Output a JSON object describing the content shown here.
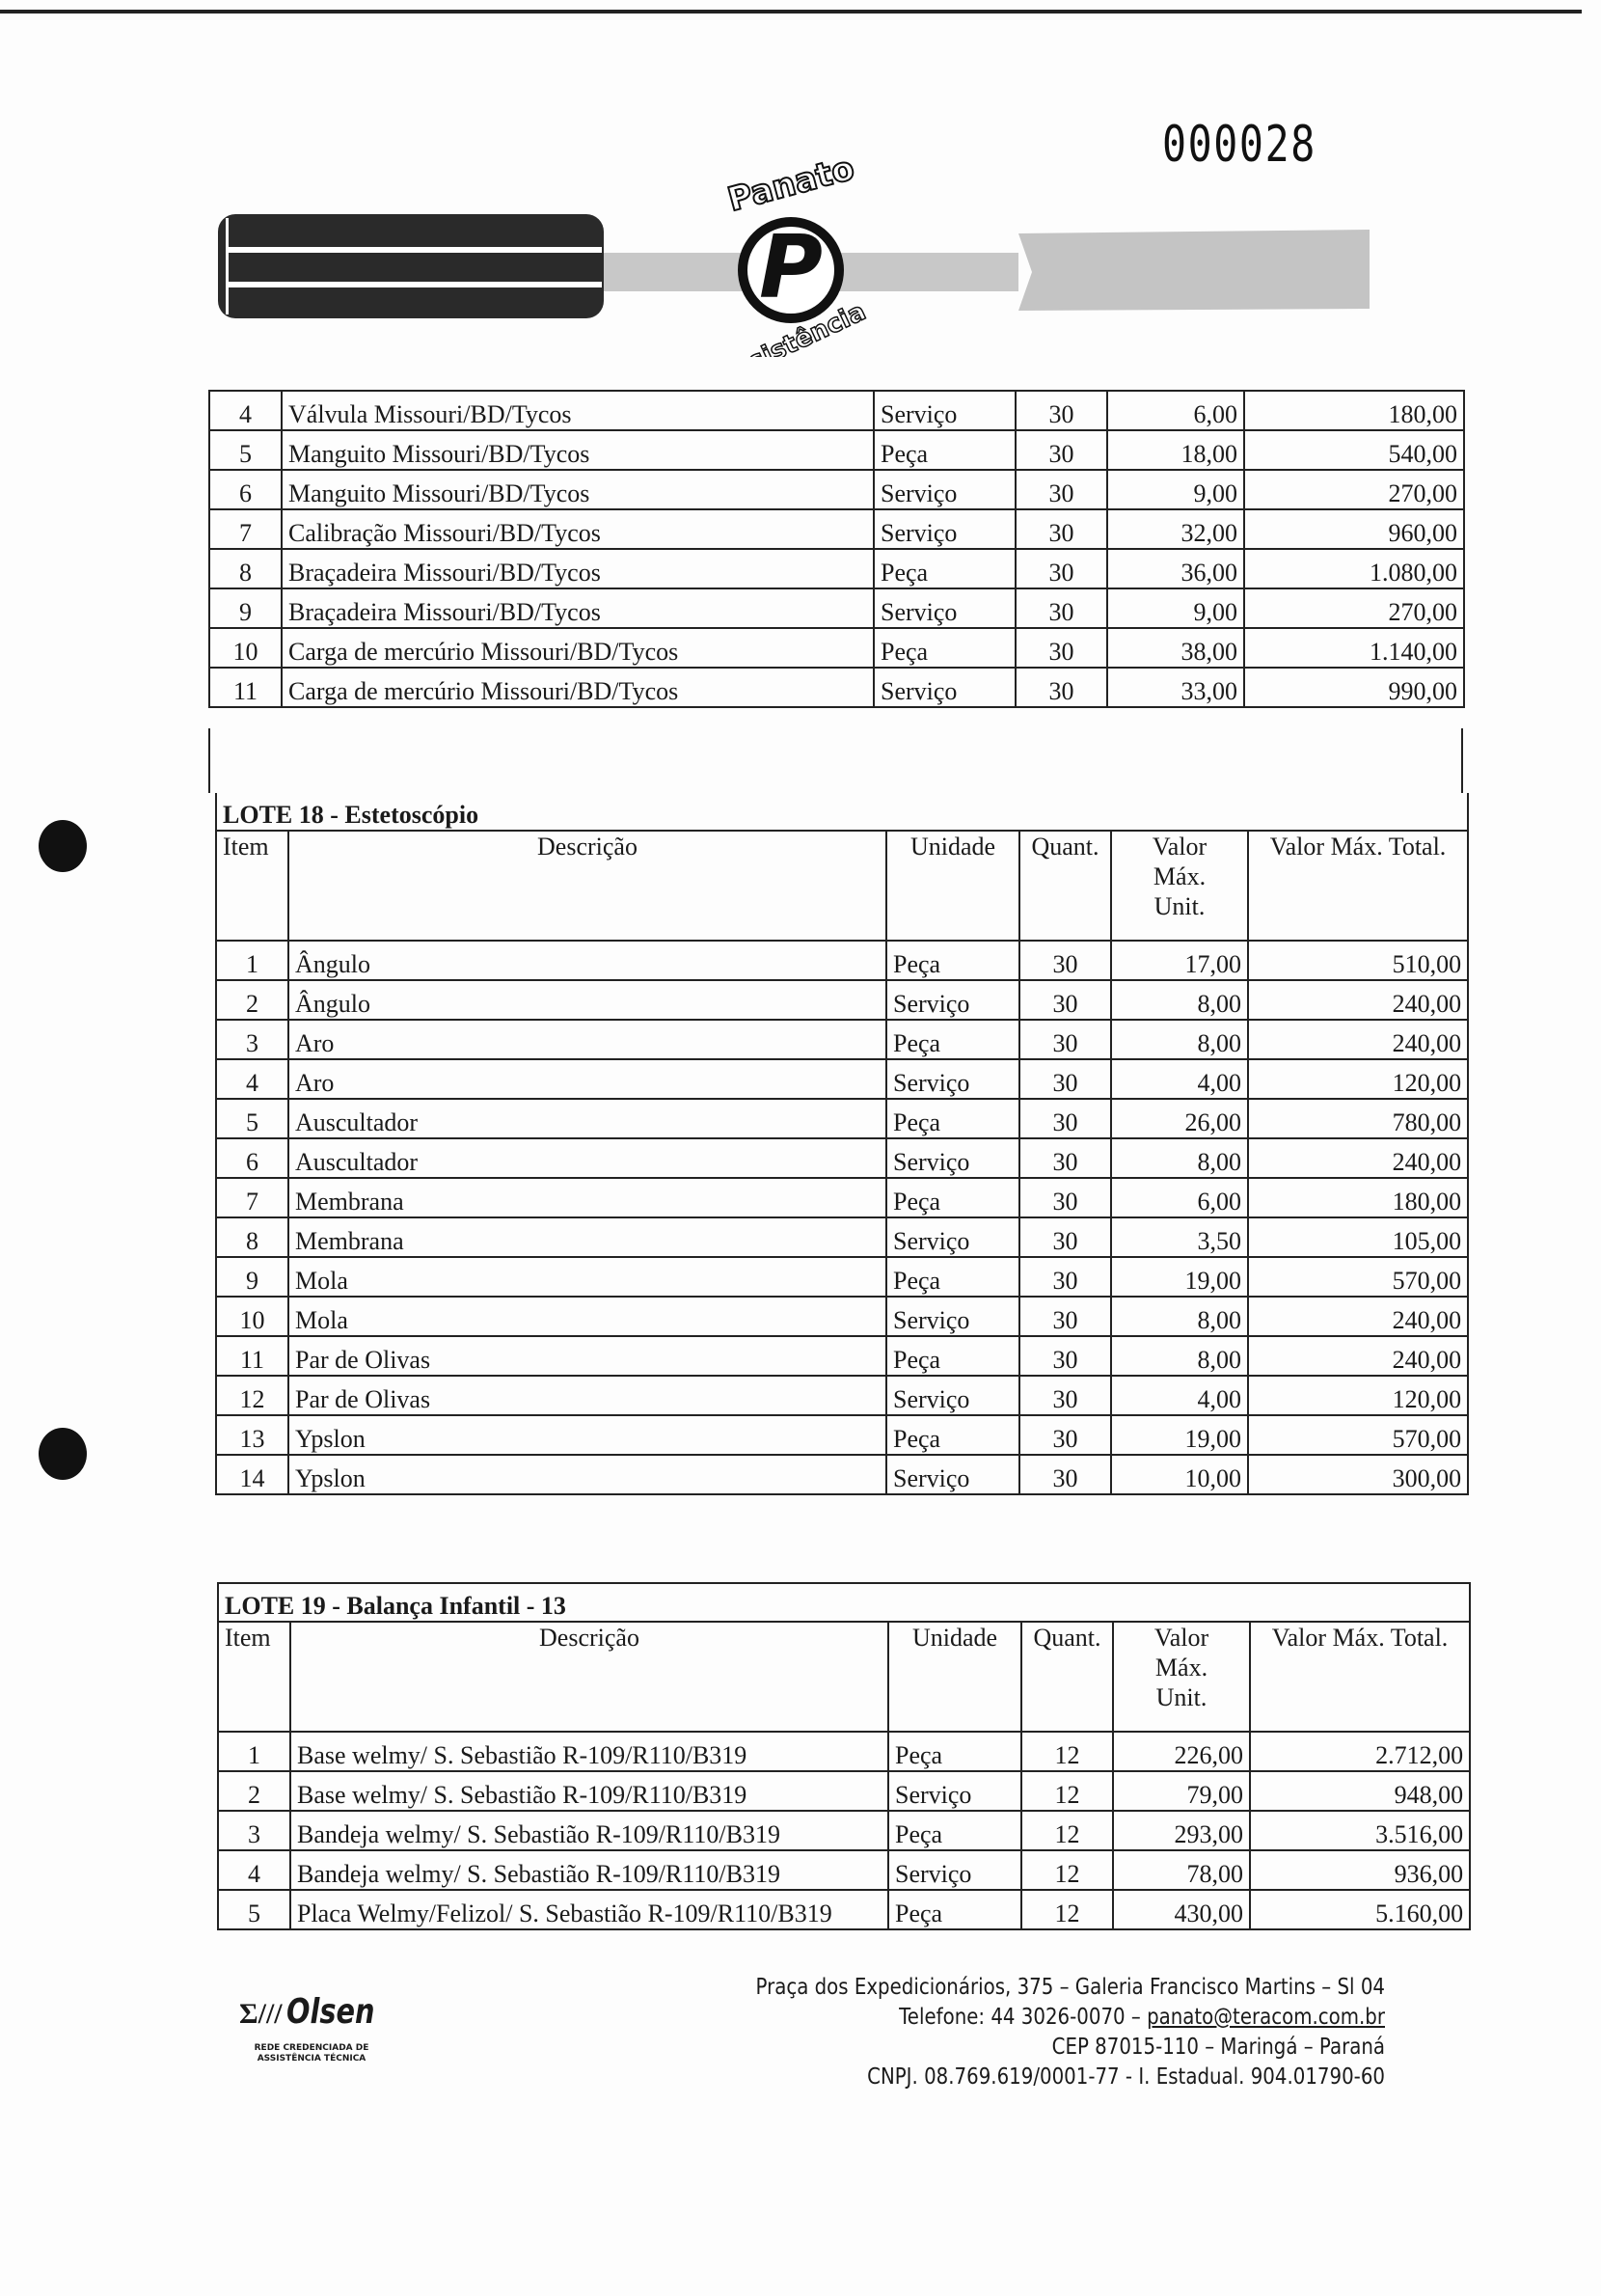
{
  "document_number": "000028",
  "logo": {
    "top_text": "Panato",
    "letter": "P",
    "bottom_text": "Assistência"
  },
  "table_continued": {
    "rows": [
      [
        "4",
        "Válvula Missouri/BD/Tycos",
        "Serviço",
        "30",
        "6,00",
        "180,00"
      ],
      [
        "5",
        "Manguito Missouri/BD/Tycos",
        "Peça",
        "30",
        "18,00",
        "540,00"
      ],
      [
        "6",
        "Manguito Missouri/BD/Tycos",
        "Serviço",
        "30",
        "9,00",
        "270,00"
      ],
      [
        "7",
        "Calibração Missouri/BD/Tycos",
        "Serviço",
        "30",
        "32,00",
        "960,00"
      ],
      [
        "8",
        "Braçadeira Missouri/BD/Tycos",
        "Peça",
        "30",
        "36,00",
        "1.080,00"
      ],
      [
        "9",
        "Braçadeira Missouri/BD/Tycos",
        "Serviço",
        "30",
        "9,00",
        "270,00"
      ],
      [
        "10",
        "Carga de mercúrio Missouri/BD/Tycos",
        "Peça",
        "30",
        "38,00",
        "1.140,00"
      ],
      [
        "11",
        "Carga de mercúrio Missouri/BD/Tycos",
        "Serviço",
        "30",
        "33,00",
        "990,00"
      ]
    ]
  },
  "headers": [
    "Item",
    "Descrição",
    "Unidade",
    "Quant.",
    "Valor Máx. Unit.",
    "Valor Máx. Total."
  ],
  "lote18": {
    "title": "LOTE 18  -  Estetoscópio",
    "rows": [
      [
        "1",
        "Ângulo",
        "Peça",
        "30",
        "17,00",
        "510,00"
      ],
      [
        "2",
        "Ângulo",
        "Serviço",
        "30",
        "8,00",
        "240,00"
      ],
      [
        "3",
        "Aro",
        "Peça",
        "30",
        "8,00",
        "240,00"
      ],
      [
        "4",
        "Aro",
        "Serviço",
        "30",
        "4,00",
        "120,00"
      ],
      [
        "5",
        "Auscultador",
        "Peça",
        "30",
        "26,00",
        "780,00"
      ],
      [
        "6",
        "Auscultador",
        "Serviço",
        "30",
        "8,00",
        "240,00"
      ],
      [
        "7",
        "Membrana",
        "Peça",
        "30",
        "6,00",
        "180,00"
      ],
      [
        "8",
        "Membrana",
        "Serviço",
        "30",
        "3,50",
        "105,00"
      ],
      [
        "9",
        "Mola",
        "Peça",
        "30",
        "19,00",
        "570,00"
      ],
      [
        "10",
        "Mola",
        "Serviço",
        "30",
        "8,00",
        "240,00"
      ],
      [
        "11",
        "Par de Olivas",
        "Peça",
        "30",
        "8,00",
        "240,00"
      ],
      [
        "12",
        "Par de Olivas",
        "Serviço",
        "30",
        "4,00",
        "120,00"
      ],
      [
        "13",
        "Ypslon",
        "Peça",
        "30",
        "19,00",
        "570,00"
      ],
      [
        "14",
        "Ypslon",
        "Serviço",
        "30",
        "10,00",
        "300,00"
      ]
    ]
  },
  "lote19": {
    "title": "LOTE 19  -  Balança Infantil - 13",
    "rows": [
      [
        "1",
        "Base welmy/ S. Sebastião R-109/R110/B319",
        "Peça",
        "12",
        "226,00",
        "2.712,00"
      ],
      [
        "2",
        "Base welmy/ S. Sebastião R-109/R110/B319",
        "Serviço",
        "12",
        "79,00",
        "948,00"
      ],
      [
        "3",
        "Bandeja welmy/ S. Sebastião R-109/R110/B319",
        "Peça",
        "12",
        "293,00",
        "3.516,00"
      ],
      [
        "4",
        "Bandeja welmy/ S. Sebastião R-109/R110/B319",
        "Serviço",
        "12",
        "78,00",
        "936,00"
      ],
      [
        "5",
        "Placa Welmy/Felizol/ S. Sebastião R-109/R110/B319",
        "Peça",
        "12",
        "430,00",
        "5.160,00"
      ]
    ]
  },
  "footer": {
    "olsen_name": "Olsen",
    "olsen_sub": "REDE CREDENCIADA DE ASSISTÊNCIA TÉCNICA",
    "address": "Praça dos Expedicionários, 375 – Galeria Francisco Martins – Sl 04",
    "phone": "Telefone: 44 3026-0070 – ",
    "email": "panato@teracom.com.br",
    "cep": "CEP 87015-110 – Maringá – Paraná",
    "cnpj": "CNPJ. 08.769.619/0001-77   -   I. Estadual. 904.01790-60"
  }
}
